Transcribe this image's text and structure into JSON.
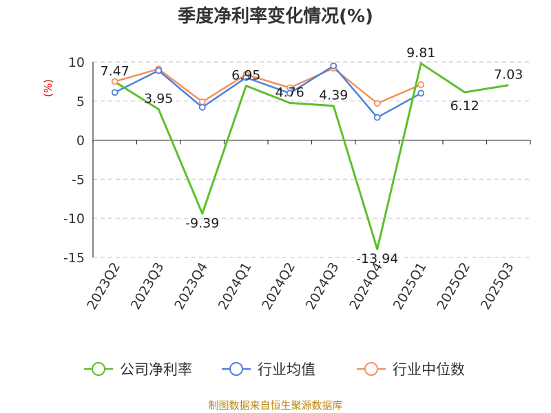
{
  "chart_data": {
    "type": "line",
    "title": "季度净利率变化情况(%)",
    "ylabel": "(%)",
    "xlabel": "",
    "ylim": [
      -15,
      10
    ],
    "yticks": [
      10,
      5,
      0,
      -5,
      -10,
      -15
    ],
    "grid": true,
    "legend_position": "bottom",
    "categories": [
      "2023Q2",
      "2023Q3",
      "2023Q4",
      "2024Q1",
      "2024Q2",
      "2024Q3",
      "2024Q4",
      "2025Q1",
      "2025Q2",
      "2025Q3"
    ],
    "series": [
      {
        "name": "公司净利率",
        "color": "#5cbf2a",
        "marker": "none",
        "show_labels": true,
        "values": [
          7.47,
          3.95,
          -9.39,
          6.95,
          4.76,
          4.39,
          -13.94,
          9.81,
          6.12,
          7.03
        ]
      },
      {
        "name": "行业均值",
        "color": "#4f7fdc",
        "marker": "circle",
        "show_labels": false,
        "values": [
          6.1,
          8.9,
          4.2,
          8.0,
          6.0,
          9.5,
          2.9,
          6.0,
          null,
          null
        ]
      },
      {
        "name": "行业中位数",
        "color": "#f0915b",
        "marker": "circle",
        "show_labels": false,
        "values": [
          7.5,
          9.1,
          4.9,
          8.4,
          6.7,
          9.2,
          4.7,
          7.1,
          null,
          null
        ]
      }
    ]
  },
  "source": "制图数据来自恒生聚源数据库"
}
